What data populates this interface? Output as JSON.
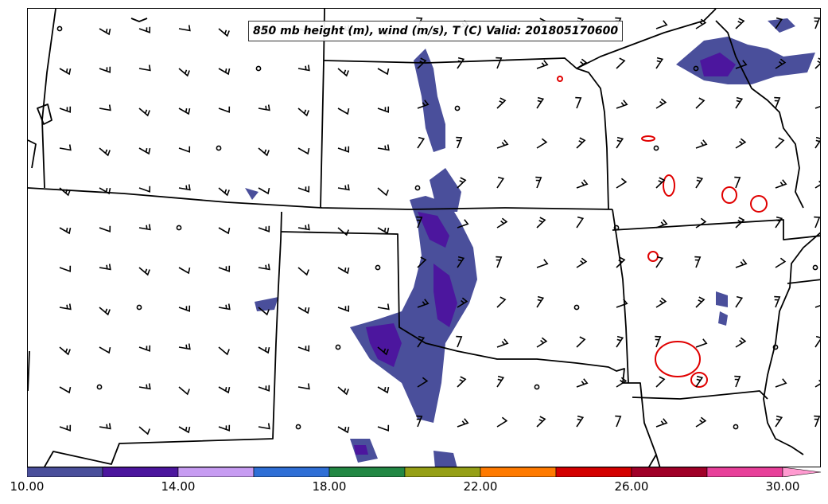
{
  "title": "850 mb height (m), wind (m/s), T (C) Valid: 201805170600",
  "colorbar": {
    "colors": [
      "#4a4f9b",
      "#4c169e",
      "#c79cf2",
      "#2f6fd6",
      "#228844",
      "#96a016",
      "#ff7a00",
      "#d40000",
      "#a00028",
      "#e8409a",
      "#ff9ad0"
    ],
    "tick_labels": [
      "10.00",
      "14.00",
      "18.00",
      "22.00",
      "26.00",
      "30.00"
    ]
  },
  "map": {
    "background": "#ffffff",
    "boundary_color": "#000000",
    "contour_color": "#e00000"
  }
}
